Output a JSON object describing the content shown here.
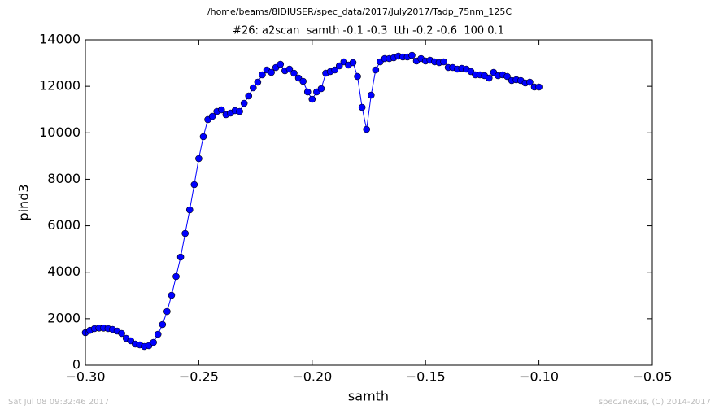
{
  "chart_data": {
    "type": "line",
    "suptitle": "/home/beams/8IDIUSER/spec_data/2017/July2017/Tadp_75nm_125C",
    "title": "#26: a2scan  samth -0.1 -0.3  tth -0.2 -0.6  100 0.1",
    "xlabel": "samth",
    "ylabel": "pind3",
    "footer_left": "Sat Jul 08 09:32:46 2017",
    "footer_right": "spec2nexus, (C) 2014-2017",
    "color": "#0000ff",
    "x": [
      -0.3,
      -0.298,
      -0.296,
      -0.294,
      -0.292,
      -0.29,
      -0.288,
      -0.286,
      -0.284,
      -0.282,
      -0.28,
      -0.278,
      -0.276,
      -0.274,
      -0.272,
      -0.27,
      -0.268,
      -0.266,
      -0.264,
      -0.262,
      -0.26,
      -0.258,
      -0.256,
      -0.254,
      -0.252,
      -0.25,
      -0.248,
      -0.246,
      -0.244,
      -0.242,
      -0.24,
      -0.238,
      -0.236,
      -0.234,
      -0.232,
      -0.23,
      -0.228,
      -0.226,
      -0.224,
      -0.222,
      -0.22,
      -0.218,
      -0.216,
      -0.214,
      -0.212,
      -0.21,
      -0.208,
      -0.206,
      -0.204,
      -0.202,
      -0.2,
      -0.198,
      -0.196,
      -0.194,
      -0.192,
      -0.19,
      -0.188,
      -0.186,
      -0.184,
      -0.182,
      -0.18,
      -0.178,
      -0.176,
      -0.174,
      -0.172,
      -0.17,
      -0.168,
      -0.166,
      -0.164,
      -0.162,
      -0.16,
      -0.158,
      -0.156,
      -0.154,
      -0.152,
      -0.15,
      -0.148,
      -0.146,
      -0.144,
      -0.142,
      -0.14,
      -0.138,
      -0.136,
      -0.134,
      -0.132,
      -0.13,
      -0.128,
      -0.126,
      -0.124,
      -0.122,
      -0.12,
      -0.118,
      -0.116,
      -0.114,
      -0.112,
      -0.11,
      -0.108,
      -0.106,
      -0.104,
      -0.102,
      -0.1
    ],
    "values": [
      1400,
      1500,
      1575,
      1600,
      1600,
      1575,
      1540,
      1470,
      1365,
      1155,
      1050,
      910,
      875,
      805,
      840,
      980,
      1330,
      1750,
      2310,
      3010,
      3815,
      4655,
      5670,
      6685,
      7770,
      8890,
      9835,
      10570,
      10710,
      10920,
      10990,
      10780,
      10850,
      10955,
      10920,
      11270,
      11585,
      11935,
      12180,
      12495,
      12705,
      12600,
      12810,
      12950,
      12670,
      12740,
      12565,
      12355,
      12215,
      11760,
      11445,
      11760,
      11900,
      12565,
      12635,
      12705,
      12880,
      13055,
      12915,
      13020,
      12425,
      11095,
      10150,
      11620,
      12705,
      13055,
      13195,
      13195,
      13230,
      13300,
      13265,
      13265,
      13335,
      13090,
      13195,
      13090,
      13125,
      13055,
      13020,
      13055,
      12810,
      12810,
      12740,
      12775,
      12740,
      12635,
      12495,
      12495,
      12460,
      12355,
      12600,
      12460,
      12495,
      12425,
      12250,
      12285,
      12250,
      12145,
      12180,
      11970,
      11970
    ],
    "xlim": [
      -0.3,
      -0.05
    ],
    "xticks": [
      {
        "value": -0.3,
        "label": "−0.30"
      },
      {
        "value": -0.25,
        "label": "−0.25"
      },
      {
        "value": -0.2,
        "label": "−0.20"
      },
      {
        "value": -0.15,
        "label": "−0.15"
      },
      {
        "value": -0.1,
        "label": "−0.10"
      },
      {
        "value": -0.05,
        "label": "−0.05"
      }
    ],
    "ylim": [
      0,
      14000
    ],
    "yticks": [
      0,
      2000,
      4000,
      6000,
      8000,
      10000,
      12000,
      14000
    ]
  }
}
